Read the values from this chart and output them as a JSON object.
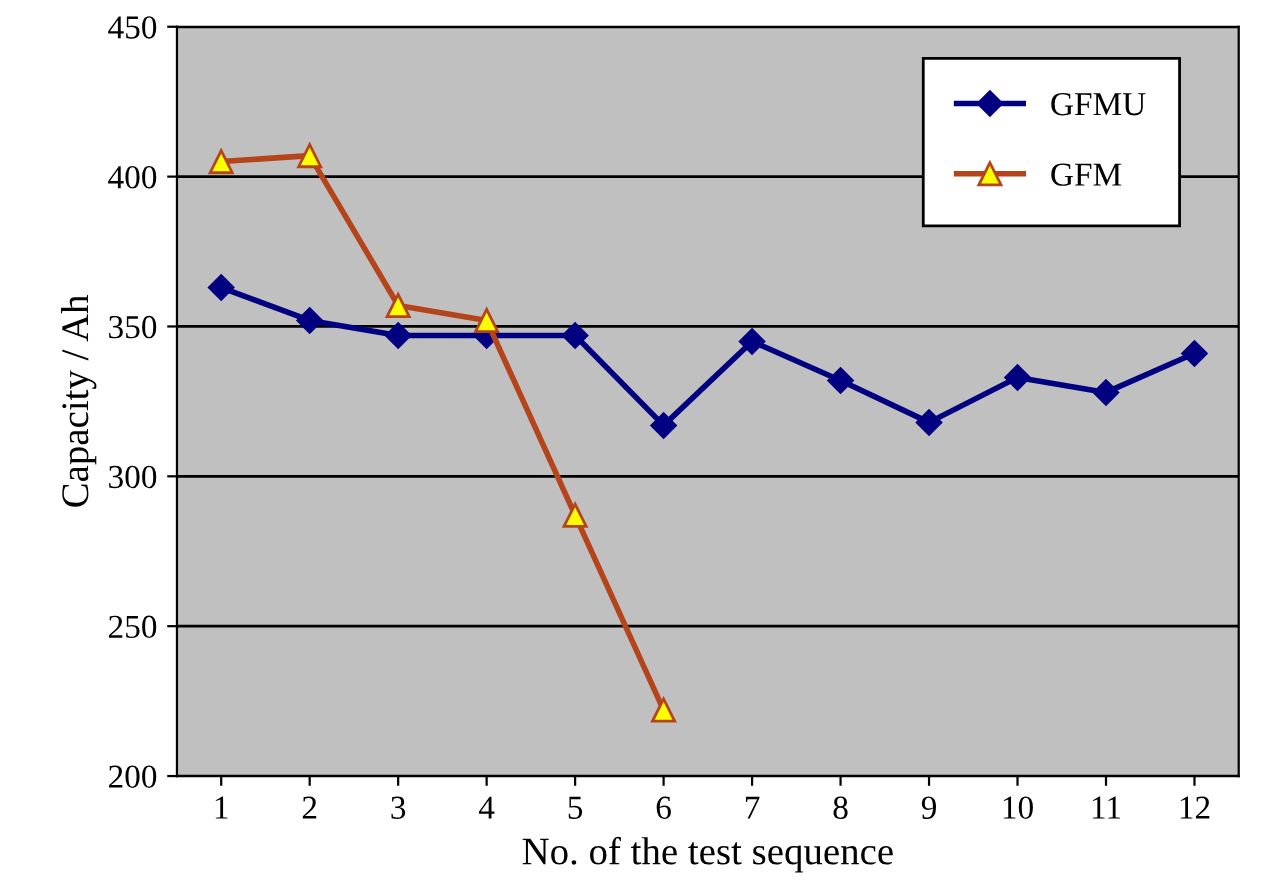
{
  "chart_data": {
    "type": "line",
    "xlabel": "No. of the test sequence",
    "ylabel": "Capacity / Ah",
    "categories": [
      "1",
      "2",
      "3",
      "4",
      "5",
      "6",
      "7",
      "8",
      "9",
      "10",
      "11",
      "12"
    ],
    "series": [
      {
        "name": "GFMU",
        "color": "#000080",
        "marker": "diamond",
        "values": [
          363,
          352,
          347,
          347,
          347,
          317,
          345,
          332,
          318,
          333,
          328,
          341
        ]
      },
      {
        "name": "GFM",
        "color": "#b5441a",
        "marker": "triangle",
        "values": [
          405,
          407,
          357,
          352,
          287,
          222,
          null,
          null,
          null,
          null,
          null,
          null
        ]
      }
    ],
    "ylim": [
      200,
      450
    ],
    "yticks": [
      200,
      250,
      300,
      350,
      400,
      450
    ],
    "grid": "y",
    "legend": "top right",
    "line_style": "solid"
  }
}
